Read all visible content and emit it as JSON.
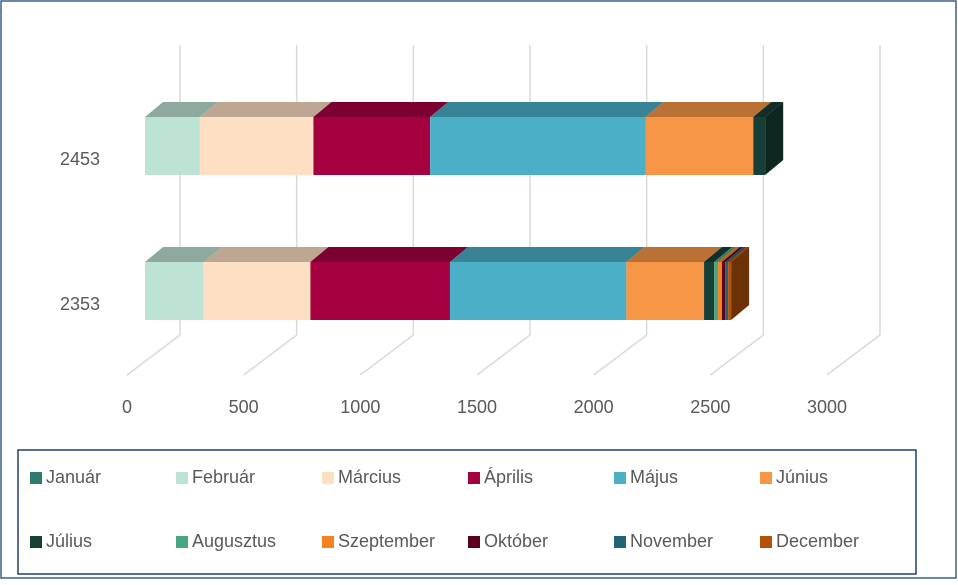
{
  "chart_data": {
    "type": "bar3d_stacked_horizontal",
    "categories": [
      "2453",
      "2353"
    ],
    "series": [
      {
        "name": "Január",
        "color": "#2e7a6c",
        "values": [
          0,
          0
        ]
      },
      {
        "name": "Február",
        "color": "#bde3d4",
        "values": [
          235,
          252
        ]
      },
      {
        "name": "Március",
        "color": "#fddfc3",
        "values": [
          487,
          457
        ]
      },
      {
        "name": "Április",
        "color": "#a50040",
        "values": [
          500,
          598
        ]
      },
      {
        "name": "Május",
        "color": "#4bafc8",
        "values": [
          923,
          756
        ]
      },
      {
        "name": "Június",
        "color": "#f79646",
        "values": [
          462,
          333
        ]
      },
      {
        "name": "Július",
        "color": "#173f35",
        "values": [
          51,
          43
        ]
      },
      {
        "name": "Augusztus",
        "color": "#4aa67f",
        "values": [
          0,
          17
        ]
      },
      {
        "name": "Szeptember",
        "color": "#f58220",
        "values": [
          0,
          17
        ]
      },
      {
        "name": "Október",
        "color": "#5b0020",
        "values": [
          0,
          13
        ]
      },
      {
        "name": "November",
        "color": "#1f6477",
        "values": [
          0,
          13
        ]
      },
      {
        "name": "December",
        "color": "#b5520a",
        "values": [
          0,
          13
        ]
      }
    ],
    "xlim": [
      0,
      3000
    ],
    "xticks": [
      0,
      500,
      1000,
      1500,
      2000,
      2500,
      3000
    ],
    "grid": true,
    "legend": "bottom"
  }
}
